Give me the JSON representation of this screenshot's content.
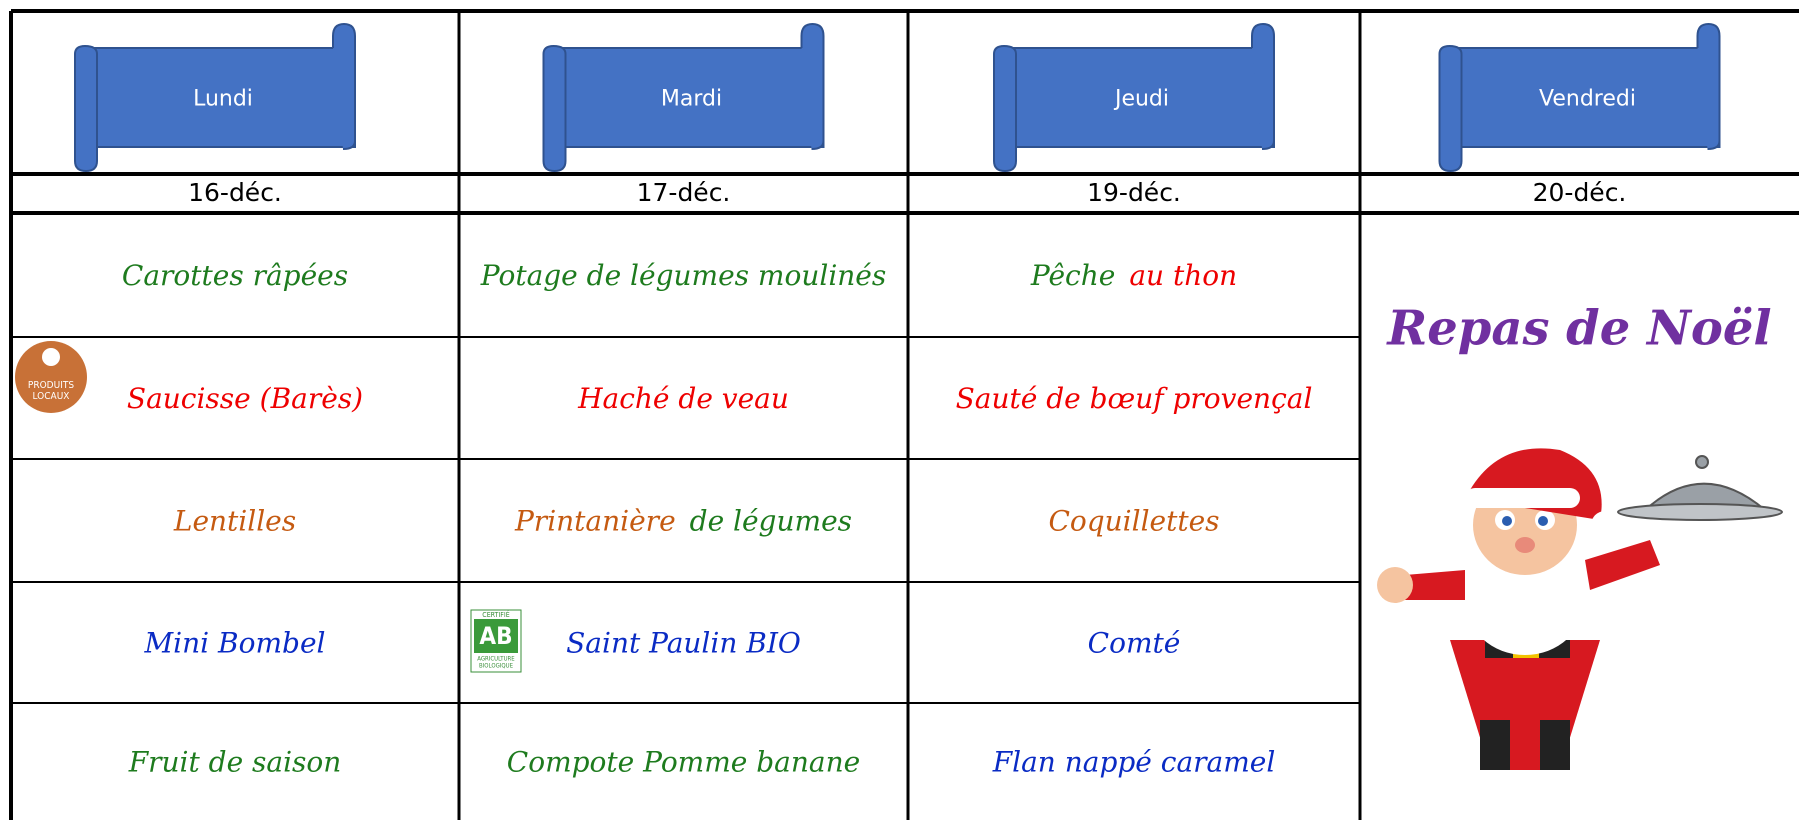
{
  "days": [
    {
      "name": "Lundi",
      "date": "16-déc."
    },
    {
      "name": "Mardi",
      "date": "17-déc."
    },
    {
      "name": "Jeudi",
      "date": "19-déc."
    },
    {
      "name": "Vendredi",
      "date": "20-déc."
    }
  ],
  "menu": {
    "rows": [
      [
        {
          "segments": [
            {
              "text": "Carottes râpées",
              "color": "#1e7b1e"
            }
          ]
        },
        {
          "segments": [
            {
              "text": "Potage de légumes moulinés",
              "color": "#1e7b1e"
            }
          ]
        },
        {
          "segments": [
            {
              "text": "Pêche",
              "color": "#1e7b1e"
            },
            {
              "text": "au thon",
              "color": "#ee0000"
            }
          ]
        }
      ],
      [
        {
          "segments": [
            {
              "text": "Saucisse (Barès)",
              "color": "#ee0000"
            }
          ],
          "badge": {
            "lines": [
              "PRODUITS",
              "LOCAUX"
            ]
          }
        },
        {
          "segments": [
            {
              "text": "Haché de veau",
              "color": "#ee0000"
            }
          ]
        },
        {
          "segments": [
            {
              "text": "Sauté de bœuf provençal",
              "color": "#ee0000"
            }
          ]
        }
      ],
      [
        {
          "segments": [
            {
              "text": "Lentilles",
              "color": "#c55a11"
            }
          ]
        },
        {
          "segments": [
            {
              "text": "Printanière",
              "color": "#c55a11"
            },
            {
              "text": "de légumes",
              "color": "#1e7b1e"
            }
          ]
        },
        {
          "segments": [
            {
              "text": "Coquillettes",
              "color": "#c55a11"
            }
          ]
        }
      ],
      [
        {
          "segments": [
            {
              "text": "Mini Bombel",
              "color": "#0a2bc4"
            }
          ]
        },
        {
          "segments": [
            {
              "text": "Saint Paulin BIO",
              "color": "#0a2bc4"
            }
          ],
          "badge": {
            "lines": [
              "CERTIFIÉ",
              "AB",
              "AGRICULTURE",
              "BIOLOGIQUE"
            ]
          }
        },
        {
          "segments": [
            {
              "text": "Comté",
              "color": "#0a2bc4"
            }
          ]
        }
      ],
      [
        {
          "segments": [
            {
              "text": "Fruit de saison",
              "color": "#1e7b1e"
            }
          ]
        },
        {
          "segments": [
            {
              "text": "Compote Pomme banane",
              "color": "#1e7b1e"
            }
          ]
        },
        {
          "segments": [
            {
              "text": "Flan nappé caramel",
              "color": "#0a2bc4"
            }
          ]
        }
      ]
    ]
  },
  "special": {
    "title": "Repas de Noël",
    "color": "#7030a0"
  }
}
